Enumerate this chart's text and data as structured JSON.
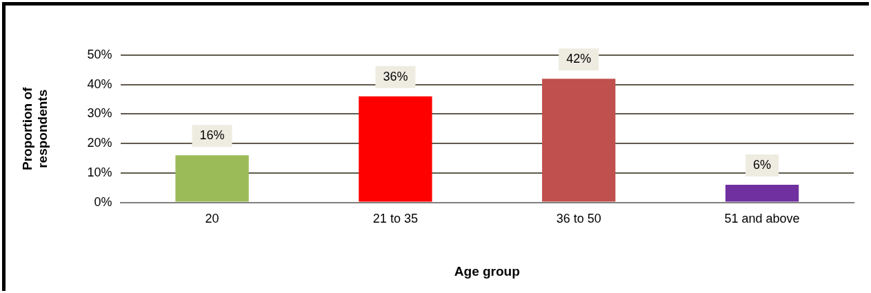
{
  "chart_data": {
    "type": "bar",
    "xlabel": "Age group",
    "ylabel": "Proportion of respondents",
    "categories": [
      "20",
      "21 to 35",
      "36 to 50",
      "51 and above"
    ],
    "values": [
      16,
      36,
      42,
      6
    ],
    "colors": [
      "#9bbb59",
      "#ff0000",
      "#c0504d",
      "#7030a0"
    ],
    "value_labels": [
      "16%",
      "36%",
      "42%",
      "6%"
    ],
    "ylim": [
      0,
      50
    ],
    "yticks": [
      {
        "value": 0,
        "label": "0%"
      },
      {
        "value": 10,
        "label": "10%"
      },
      {
        "value": 20,
        "label": "20%"
      },
      {
        "value": 30,
        "label": "30%"
      },
      {
        "value": 40,
        "label": "40%"
      },
      {
        "value": 50,
        "label": "50%"
      }
    ],
    "grid": "y"
  }
}
